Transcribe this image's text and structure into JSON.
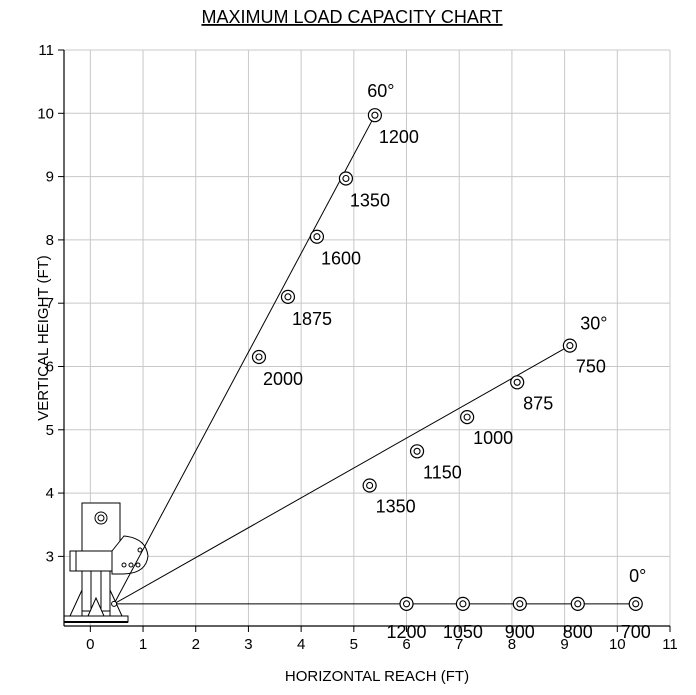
{
  "chart_data": {
    "type": "line",
    "title": "MAXIMUM LOAD CAPACITY CHART",
    "xlabel": "HORIZONTAL REACH (FT)",
    "ylabel": "VERTICAL HEIGHT (FT)",
    "xlim": [
      -0.5,
      11
    ],
    "ylim": [
      1.9,
      11
    ],
    "x_ticks": [
      "0",
      "1",
      "2",
      "3",
      "4",
      "5",
      "6",
      "7",
      "8",
      "9",
      "10",
      "11"
    ],
    "y_ticks": [
      "3",
      "4",
      "5",
      "6",
      "7",
      "8",
      "9",
      "10",
      "11"
    ],
    "grid": true,
    "pivot": {
      "x": 0.45,
      "y": 2.25
    },
    "series": [
      {
        "name": "60°",
        "points": [
          {
            "x": 3.2,
            "y": 6.15,
            "label": "2000"
          },
          {
            "x": 3.75,
            "y": 7.1,
            "label": "1875"
          },
          {
            "x": 4.3,
            "y": 8.05,
            "label": "1600"
          },
          {
            "x": 4.85,
            "y": 8.97,
            "label": "1350"
          },
          {
            "x": 5.4,
            "y": 9.97,
            "label": "1200"
          }
        ]
      },
      {
        "name": "30°",
        "points": [
          {
            "x": 5.3,
            "y": 4.12,
            "label": "1350"
          },
          {
            "x": 6.2,
            "y": 4.66,
            "label": "1150"
          },
          {
            "x": 7.15,
            "y": 5.2,
            "label": "1000"
          },
          {
            "x": 8.1,
            "y": 5.75,
            "label": "875"
          },
          {
            "x": 9.1,
            "y": 6.33,
            "label": "750"
          }
        ]
      },
      {
        "name": "0°",
        "points": [
          {
            "x": 6.0,
            "y": 2.25,
            "label": "1200"
          },
          {
            "x": 7.07,
            "y": 2.25,
            "label": "1050"
          },
          {
            "x": 8.15,
            "y": 2.25,
            "label": "900"
          },
          {
            "x": 9.25,
            "y": 2.25,
            "label": "800"
          },
          {
            "x": 10.35,
            "y": 2.25,
            "label": "700"
          }
        ]
      }
    ]
  },
  "colors": {
    "line": "#000000",
    "grid": "#c8c8c8",
    "background": "#ffffff"
  }
}
